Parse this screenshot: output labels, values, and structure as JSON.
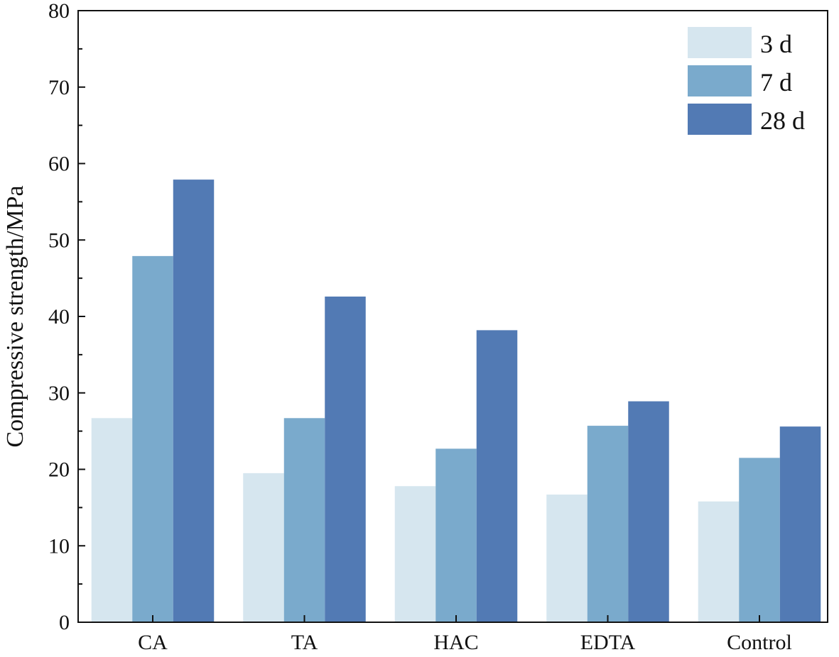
{
  "chart_data": {
    "type": "bar",
    "ylabel": "Compressive strength/MPa",
    "xlabel": "",
    "ylim": [
      0,
      80
    ],
    "yticks": [
      0,
      10,
      20,
      30,
      40,
      50,
      60,
      70,
      80
    ],
    "categories": [
      "CA",
      "TA",
      "HAC",
      "EDTA",
      "Control"
    ],
    "series": [
      {
        "name": "3 d",
        "color": "#d6e6ef",
        "values": [
          26.7,
          19.5,
          17.8,
          16.7,
          15.8
        ]
      },
      {
        "name": "7 d",
        "color": "#7aaacc",
        "values": [
          47.9,
          26.7,
          22.7,
          25.7,
          21.5
        ]
      },
      {
        "name": "28 d",
        "color": "#527ab4",
        "values": [
          57.9,
          42.6,
          38.2,
          28.9,
          25.6
        ]
      }
    ],
    "legend_position": "top-right",
    "grid": false
  }
}
